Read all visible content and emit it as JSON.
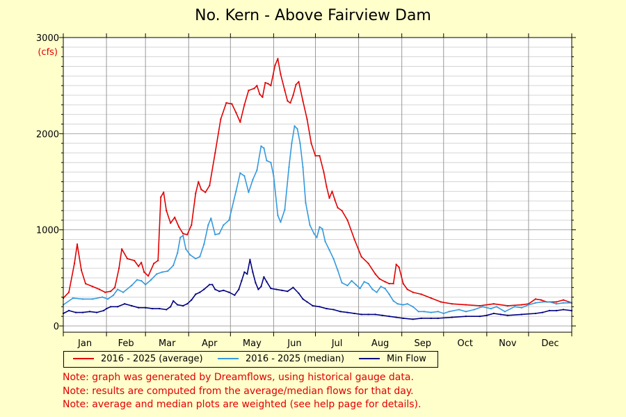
{
  "chart_data": {
    "type": "line",
    "title": "No. Kern - Above Fairview Dam",
    "ylabel": "(cfs)",
    "ylim": [
      0,
      3000
    ],
    "yticks": [
      "0",
      "1000",
      "2000",
      "3000"
    ],
    "categories": [
      "Jan",
      "Feb",
      "Mar",
      "Apr",
      "May",
      "Jun",
      "Jul",
      "Aug",
      "Sep",
      "Oct",
      "Nov",
      "Dec"
    ],
    "x_unit": "day of year",
    "grid": true,
    "legend_position": "bottom",
    "series": [
      {
        "name": "2016 - 2025 (average)",
        "color": "#e00000",
        "points": [
          [
            1,
            290
          ],
          [
            5,
            350
          ],
          [
            9,
            650
          ],
          [
            11,
            850
          ],
          [
            14,
            580
          ],
          [
            17,
            440
          ],
          [
            22,
            410
          ],
          [
            27,
            380
          ],
          [
            31,
            350
          ],
          [
            35,
            360
          ],
          [
            38,
            400
          ],
          [
            41,
            600
          ],
          [
            43,
            800
          ],
          [
            47,
            700
          ],
          [
            52,
            680
          ],
          [
            55,
            620
          ],
          [
            57,
            660
          ],
          [
            59,
            560
          ],
          [
            62,
            520
          ],
          [
            66,
            650
          ],
          [
            69,
            680
          ],
          [
            71,
            1340
          ],
          [
            73,
            1390
          ],
          [
            75,
            1200
          ],
          [
            78,
            1070
          ],
          [
            81,
            1130
          ],
          [
            84,
            1030
          ],
          [
            87,
            960
          ],
          [
            90,
            950
          ],
          [
            93,
            1050
          ],
          [
            96,
            1380
          ],
          [
            98,
            1500
          ],
          [
            100,
            1420
          ],
          [
            103,
            1390
          ],
          [
            106,
            1460
          ],
          [
            110,
            1800
          ],
          [
            114,
            2150
          ],
          [
            118,
            2320
          ],
          [
            122,
            2310
          ],
          [
            125,
            2220
          ],
          [
            128,
            2120
          ],
          [
            131,
            2300
          ],
          [
            134,
            2450
          ],
          [
            138,
            2470
          ],
          [
            140,
            2500
          ],
          [
            142,
            2410
          ],
          [
            144,
            2380
          ],
          [
            146,
            2530
          ],
          [
            148,
            2520
          ],
          [
            150,
            2500
          ],
          [
            153,
            2710
          ],
          [
            155,
            2780
          ],
          [
            157,
            2620
          ],
          [
            160,
            2450
          ],
          [
            162,
            2340
          ],
          [
            164,
            2320
          ],
          [
            166,
            2400
          ],
          [
            168,
            2510
          ],
          [
            170,
            2540
          ],
          [
            173,
            2340
          ],
          [
            176,
            2150
          ],
          [
            179,
            1900
          ],
          [
            182,
            1770
          ],
          [
            185,
            1770
          ],
          [
            188,
            1600
          ],
          [
            190,
            1450
          ],
          [
            192,
            1330
          ],
          [
            194,
            1400
          ],
          [
            196,
            1310
          ],
          [
            198,
            1230
          ],
          [
            201,
            1200
          ],
          [
            205,
            1100
          ],
          [
            210,
            900
          ],
          [
            215,
            720
          ],
          [
            220,
            650
          ],
          [
            225,
            540
          ],
          [
            228,
            490
          ],
          [
            232,
            460
          ],
          [
            235,
            440
          ],
          [
            238,
            440
          ],
          [
            240,
            640
          ],
          [
            242,
            610
          ],
          [
            245,
            440
          ],
          [
            248,
            380
          ],
          [
            252,
            350
          ],
          [
            258,
            330
          ],
          [
            265,
            290
          ],
          [
            272,
            250
          ],
          [
            280,
            230
          ],
          [
            290,
            220
          ],
          [
            300,
            210
          ],
          [
            310,
            230
          ],
          [
            320,
            210
          ],
          [
            330,
            220
          ],
          [
            335,
            230
          ],
          [
            340,
            280
          ],
          [
            344,
            270
          ],
          [
            348,
            250
          ],
          [
            355,
            250
          ],
          [
            360,
            270
          ],
          [
            366,
            240
          ]
        ]
      },
      {
        "name": "2016 - 2025 (median)",
        "color": "#3399dd",
        "points": [
          [
            1,
            220
          ],
          [
            8,
            290
          ],
          [
            15,
            280
          ],
          [
            22,
            280
          ],
          [
            29,
            300
          ],
          [
            33,
            280
          ],
          [
            37,
            320
          ],
          [
            40,
            380
          ],
          [
            44,
            350
          ],
          [
            50,
            420
          ],
          [
            54,
            480
          ],
          [
            57,
            470
          ],
          [
            60,
            430
          ],
          [
            64,
            480
          ],
          [
            68,
            540
          ],
          [
            72,
            560
          ],
          [
            76,
            570
          ],
          [
            80,
            630
          ],
          [
            83,
            760
          ],
          [
            85,
            920
          ],
          [
            87,
            940
          ],
          [
            89,
            800
          ],
          [
            92,
            740
          ],
          [
            96,
            700
          ],
          [
            99,
            720
          ],
          [
            102,
            850
          ],
          [
            105,
            1050
          ],
          [
            107,
            1120
          ],
          [
            110,
            950
          ],
          [
            113,
            960
          ],
          [
            116,
            1050
          ],
          [
            120,
            1100
          ],
          [
            125,
            1400
          ],
          [
            128,
            1590
          ],
          [
            131,
            1560
          ],
          [
            134,
            1390
          ],
          [
            137,
            1520
          ],
          [
            140,
            1620
          ],
          [
            143,
            1870
          ],
          [
            145,
            1850
          ],
          [
            147,
            1720
          ],
          [
            150,
            1700
          ],
          [
            152,
            1560
          ],
          [
            155,
            1150
          ],
          [
            157,
            1080
          ],
          [
            160,
            1210
          ],
          [
            163,
            1650
          ],
          [
            165,
            1900
          ],
          [
            167,
            2080
          ],
          [
            169,
            2050
          ],
          [
            171,
            1900
          ],
          [
            173,
            1650
          ],
          [
            175,
            1280
          ],
          [
            178,
            1050
          ],
          [
            181,
            960
          ],
          [
            183,
            920
          ],
          [
            185,
            1030
          ],
          [
            187,
            1010
          ],
          [
            189,
            880
          ],
          [
            192,
            790
          ],
          [
            195,
            700
          ],
          [
            198,
            580
          ],
          [
            201,
            450
          ],
          [
            205,
            420
          ],
          [
            208,
            470
          ],
          [
            211,
            430
          ],
          [
            214,
            390
          ],
          [
            217,
            460
          ],
          [
            220,
            440
          ],
          [
            223,
            380
          ],
          [
            226,
            350
          ],
          [
            229,
            410
          ],
          [
            232,
            390
          ],
          [
            235,
            330
          ],
          [
            238,
            260
          ],
          [
            241,
            230
          ],
          [
            245,
            220
          ],
          [
            248,
            230
          ],
          [
            252,
            200
          ],
          [
            256,
            150
          ],
          [
            260,
            150
          ],
          [
            265,
            140
          ],
          [
            270,
            150
          ],
          [
            274,
            130
          ],
          [
            278,
            150
          ],
          [
            285,
            170
          ],
          [
            290,
            150
          ],
          [
            296,
            170
          ],
          [
            302,
            200
          ],
          [
            308,
            180
          ],
          [
            312,
            200
          ],
          [
            318,
            150
          ],
          [
            325,
            200
          ],
          [
            330,
            190
          ],
          [
            335,
            220
          ],
          [
            340,
            240
          ],
          [
            345,
            250
          ],
          [
            350,
            250
          ],
          [
            355,
            230
          ],
          [
            360,
            240
          ],
          [
            366,
            240
          ]
        ]
      },
      {
        "name": "Min Flow",
        "color": "#000080",
        "points": [
          [
            1,
            130
          ],
          [
            5,
            160
          ],
          [
            10,
            140
          ],
          [
            15,
            140
          ],
          [
            20,
            150
          ],
          [
            25,
            140
          ],
          [
            30,
            160
          ],
          [
            32,
            180
          ],
          [
            35,
            200
          ],
          [
            40,
            200
          ],
          [
            45,
            230
          ],
          [
            50,
            210
          ],
          [
            55,
            190
          ],
          [
            60,
            190
          ],
          [
            65,
            180
          ],
          [
            70,
            180
          ],
          [
            75,
            170
          ],
          [
            78,
            200
          ],
          [
            80,
            260
          ],
          [
            83,
            220
          ],
          [
            87,
            210
          ],
          [
            90,
            230
          ],
          [
            93,
            270
          ],
          [
            96,
            330
          ],
          [
            99,
            350
          ],
          [
            102,
            380
          ],
          [
            106,
            430
          ],
          [
            108,
            430
          ],
          [
            110,
            380
          ],
          [
            113,
            360
          ],
          [
            116,
            370
          ],
          [
            120,
            350
          ],
          [
            124,
            320
          ],
          [
            127,
            380
          ],
          [
            129,
            470
          ],
          [
            131,
            560
          ],
          [
            133,
            540
          ],
          [
            135,
            690
          ],
          [
            137,
            560
          ],
          [
            139,
            450
          ],
          [
            141,
            380
          ],
          [
            143,
            410
          ],
          [
            145,
            510
          ],
          [
            147,
            460
          ],
          [
            150,
            390
          ],
          [
            154,
            380
          ],
          [
            158,
            370
          ],
          [
            162,
            360
          ],
          [
            166,
            400
          ],
          [
            170,
            340
          ],
          [
            173,
            280
          ],
          [
            176,
            250
          ],
          [
            180,
            210
          ],
          [
            185,
            200
          ],
          [
            190,
            180
          ],
          [
            195,
            170
          ],
          [
            200,
            150
          ],
          [
            205,
            140
          ],
          [
            210,
            130
          ],
          [
            215,
            120
          ],
          [
            220,
            120
          ],
          [
            225,
            120
          ],
          [
            230,
            110
          ],
          [
            235,
            100
          ],
          [
            240,
            90
          ],
          [
            245,
            80
          ],
          [
            252,
            70
          ],
          [
            258,
            80
          ],
          [
            265,
            80
          ],
          [
            270,
            80
          ],
          [
            280,
            90
          ],
          [
            290,
            100
          ],
          [
            300,
            100
          ],
          [
            305,
            110
          ],
          [
            310,
            130
          ],
          [
            315,
            120
          ],
          [
            320,
            110
          ],
          [
            330,
            120
          ],
          [
            340,
            130
          ],
          [
            345,
            140
          ],
          [
            350,
            160
          ],
          [
            355,
            160
          ],
          [
            360,
            170
          ],
          [
            366,
            160
          ]
        ]
      }
    ]
  },
  "notes": [
    "Note: graph was generated by Dreamflows, using historical gauge data.",
    "Note: results are computed from the average/median flows for that day.",
    "Note: average and median plots are weighted (see help page for details)."
  ]
}
